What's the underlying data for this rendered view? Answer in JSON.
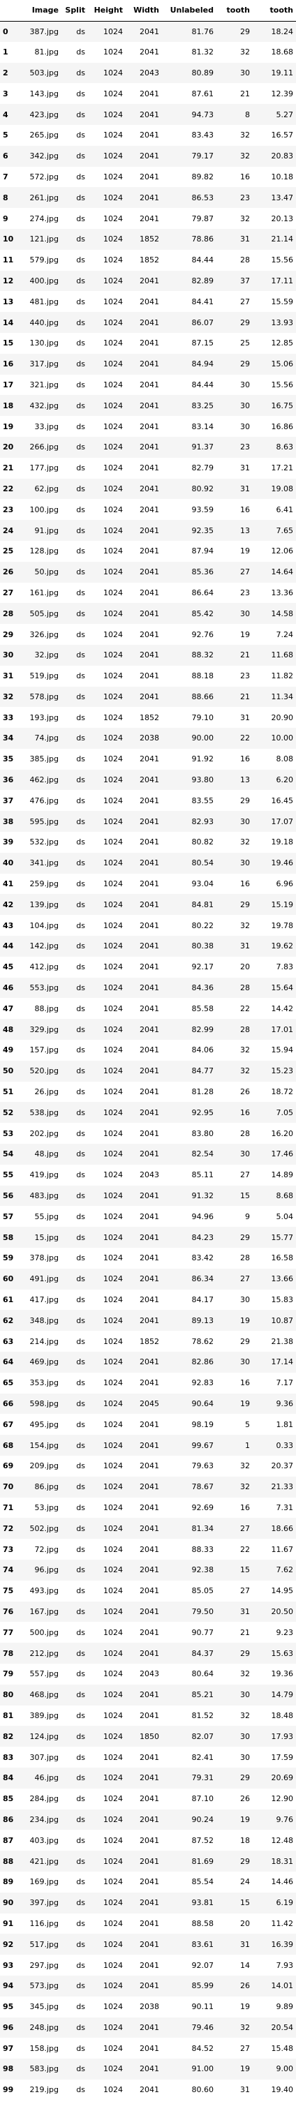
{
  "columns": [
    "",
    "Image",
    "Split",
    "Height",
    "Width",
    "Unlabeled",
    "tooth",
    "tooth"
  ],
  "rows": [
    [
      "0",
      "387.jpg",
      "ds",
      "1024",
      "2041",
      "81.76",
      "29",
      "18.24"
    ],
    [
      "1",
      "81.jpg",
      "ds",
      "1024",
      "2041",
      "81.32",
      "32",
      "18.68"
    ],
    [
      "2",
      "503.jpg",
      "ds",
      "1024",
      "2043",
      "80.89",
      "30",
      "19.11"
    ],
    [
      "3",
      "143.jpg",
      "ds",
      "1024",
      "2041",
      "87.61",
      "21",
      "12.39"
    ],
    [
      "4",
      "423.jpg",
      "ds",
      "1024",
      "2041",
      "94.73",
      "8",
      "5.27"
    ],
    [
      "5",
      "265.jpg",
      "ds",
      "1024",
      "2041",
      "83.43",
      "32",
      "16.57"
    ],
    [
      "6",
      "342.jpg",
      "ds",
      "1024",
      "2041",
      "79.17",
      "32",
      "20.83"
    ],
    [
      "7",
      "572.jpg",
      "ds",
      "1024",
      "2041",
      "89.82",
      "16",
      "10.18"
    ],
    [
      "8",
      "261.jpg",
      "ds",
      "1024",
      "2041",
      "86.53",
      "23",
      "13.47"
    ],
    [
      "9",
      "274.jpg",
      "ds",
      "1024",
      "2041",
      "79.87",
      "32",
      "20.13"
    ],
    [
      "10",
      "121.jpg",
      "ds",
      "1024",
      "1852",
      "78.86",
      "31",
      "21.14"
    ],
    [
      "11",
      "579.jpg",
      "ds",
      "1024",
      "1852",
      "84.44",
      "28",
      "15.56"
    ],
    [
      "12",
      "400.jpg",
      "ds",
      "1024",
      "2041",
      "82.89",
      "37",
      "17.11"
    ],
    [
      "13",
      "481.jpg",
      "ds",
      "1024",
      "2041",
      "84.41",
      "27",
      "15.59"
    ],
    [
      "14",
      "440.jpg",
      "ds",
      "1024",
      "2041",
      "86.07",
      "29",
      "13.93"
    ],
    [
      "15",
      "130.jpg",
      "ds",
      "1024",
      "2041",
      "87.15",
      "25",
      "12.85"
    ],
    [
      "16",
      "317.jpg",
      "ds",
      "1024",
      "2041",
      "84.94",
      "29",
      "15.06"
    ],
    [
      "17",
      "321.jpg",
      "ds",
      "1024",
      "2041",
      "84.44",
      "30",
      "15.56"
    ],
    [
      "18",
      "432.jpg",
      "ds",
      "1024",
      "2041",
      "83.25",
      "30",
      "16.75"
    ],
    [
      "19",
      "33.jpg",
      "ds",
      "1024",
      "2041",
      "83.14",
      "30",
      "16.86"
    ],
    [
      "20",
      "266.jpg",
      "ds",
      "1024",
      "2041",
      "91.37",
      "23",
      "8.63"
    ],
    [
      "21",
      "177.jpg",
      "ds",
      "1024",
      "2041",
      "82.79",
      "31",
      "17.21"
    ],
    [
      "22",
      "62.jpg",
      "ds",
      "1024",
      "2041",
      "80.92",
      "31",
      "19.08"
    ],
    [
      "23",
      "100.jpg",
      "ds",
      "1024",
      "2041",
      "93.59",
      "16",
      "6.41"
    ],
    [
      "24",
      "91.jpg",
      "ds",
      "1024",
      "2041",
      "92.35",
      "13",
      "7.65"
    ],
    [
      "25",
      "128.jpg",
      "ds",
      "1024",
      "2041",
      "87.94",
      "19",
      "12.06"
    ],
    [
      "26",
      "50.jpg",
      "ds",
      "1024",
      "2041",
      "85.36",
      "27",
      "14.64"
    ],
    [
      "27",
      "161.jpg",
      "ds",
      "1024",
      "2041",
      "86.64",
      "23",
      "13.36"
    ],
    [
      "28",
      "505.jpg",
      "ds",
      "1024",
      "2041",
      "85.42",
      "30",
      "14.58"
    ],
    [
      "29",
      "326.jpg",
      "ds",
      "1024",
      "2041",
      "92.76",
      "19",
      "7.24"
    ],
    [
      "30",
      "32.jpg",
      "ds",
      "1024",
      "2041",
      "88.32",
      "21",
      "11.68"
    ],
    [
      "31",
      "519.jpg",
      "ds",
      "1024",
      "2041",
      "88.18",
      "23",
      "11.82"
    ],
    [
      "32",
      "578.jpg",
      "ds",
      "1024",
      "2041",
      "88.66",
      "21",
      "11.34"
    ],
    [
      "33",
      "193.jpg",
      "ds",
      "1024",
      "1852",
      "79.10",
      "31",
      "20.90"
    ],
    [
      "34",
      "74.jpg",
      "ds",
      "1024",
      "2038",
      "90.00",
      "22",
      "10.00"
    ],
    [
      "35",
      "385.jpg",
      "ds",
      "1024",
      "2041",
      "91.92",
      "16",
      "8.08"
    ],
    [
      "36",
      "462.jpg",
      "ds",
      "1024",
      "2041",
      "93.80",
      "13",
      "6.20"
    ],
    [
      "37",
      "476.jpg",
      "ds",
      "1024",
      "2041",
      "83.55",
      "29",
      "16.45"
    ],
    [
      "38",
      "595.jpg",
      "ds",
      "1024",
      "2041",
      "82.93",
      "30",
      "17.07"
    ],
    [
      "39",
      "532.jpg",
      "ds",
      "1024",
      "2041",
      "80.82",
      "32",
      "19.18"
    ],
    [
      "40",
      "341.jpg",
      "ds",
      "1024",
      "2041",
      "80.54",
      "30",
      "19.46"
    ],
    [
      "41",
      "259.jpg",
      "ds",
      "1024",
      "2041",
      "93.04",
      "16",
      "6.96"
    ],
    [
      "42",
      "139.jpg",
      "ds",
      "1024",
      "2041",
      "84.81",
      "29",
      "15.19"
    ],
    [
      "43",
      "104.jpg",
      "ds",
      "1024",
      "2041",
      "80.22",
      "32",
      "19.78"
    ],
    [
      "44",
      "142.jpg",
      "ds",
      "1024",
      "2041",
      "80.38",
      "31",
      "19.62"
    ],
    [
      "45",
      "412.jpg",
      "ds",
      "1024",
      "2041",
      "92.17",
      "20",
      "7.83"
    ],
    [
      "46",
      "553.jpg",
      "ds",
      "1024",
      "2041",
      "84.36",
      "28",
      "15.64"
    ],
    [
      "47",
      "88.jpg",
      "ds",
      "1024",
      "2041",
      "85.58",
      "22",
      "14.42"
    ],
    [
      "48",
      "329.jpg",
      "ds",
      "1024",
      "2041",
      "82.99",
      "28",
      "17.01"
    ],
    [
      "49",
      "157.jpg",
      "ds",
      "1024",
      "2041",
      "84.06",
      "32",
      "15.94"
    ],
    [
      "50",
      "520.jpg",
      "ds",
      "1024",
      "2041",
      "84.77",
      "32",
      "15.23"
    ],
    [
      "51",
      "26.jpg",
      "ds",
      "1024",
      "2041",
      "81.28",
      "26",
      "18.72"
    ],
    [
      "52",
      "538.jpg",
      "ds",
      "1024",
      "2041",
      "92.95",
      "16",
      "7.05"
    ],
    [
      "53",
      "202.jpg",
      "ds",
      "1024",
      "2041",
      "83.80",
      "28",
      "16.20"
    ],
    [
      "54",
      "48.jpg",
      "ds",
      "1024",
      "2041",
      "82.54",
      "30",
      "17.46"
    ],
    [
      "55",
      "419.jpg",
      "ds",
      "1024",
      "2043",
      "85.11",
      "27",
      "14.89"
    ],
    [
      "56",
      "483.jpg",
      "ds",
      "1024",
      "2041",
      "91.32",
      "15",
      "8.68"
    ],
    [
      "57",
      "55.jpg",
      "ds",
      "1024",
      "2041",
      "94.96",
      "9",
      "5.04"
    ],
    [
      "58",
      "15.jpg",
      "ds",
      "1024",
      "2041",
      "84.23",
      "29",
      "15.77"
    ],
    [
      "59",
      "378.jpg",
      "ds",
      "1024",
      "2041",
      "83.42",
      "28",
      "16.58"
    ],
    [
      "60",
      "491.jpg",
      "ds",
      "1024",
      "2041",
      "86.34",
      "27",
      "13.66"
    ],
    [
      "61",
      "417.jpg",
      "ds",
      "1024",
      "2041",
      "84.17",
      "30",
      "15.83"
    ],
    [
      "62",
      "348.jpg",
      "ds",
      "1024",
      "2041",
      "89.13",
      "19",
      "10.87"
    ],
    [
      "63",
      "214.jpg",
      "ds",
      "1024",
      "1852",
      "78.62",
      "29",
      "21.38"
    ],
    [
      "64",
      "469.jpg",
      "ds",
      "1024",
      "2041",
      "82.86",
      "30",
      "17.14"
    ],
    [
      "65",
      "353.jpg",
      "ds",
      "1024",
      "2041",
      "92.83",
      "16",
      "7.17"
    ],
    [
      "66",
      "598.jpg",
      "ds",
      "1024",
      "2045",
      "90.64",
      "19",
      "9.36"
    ],
    [
      "67",
      "495.jpg",
      "ds",
      "1024",
      "2041",
      "98.19",
      "5",
      "1.81"
    ],
    [
      "68",
      "154.jpg",
      "ds",
      "1024",
      "2041",
      "99.67",
      "1",
      "0.33"
    ],
    [
      "69",
      "209.jpg",
      "ds",
      "1024",
      "2041",
      "79.63",
      "32",
      "20.37"
    ],
    [
      "70",
      "86.jpg",
      "ds",
      "1024",
      "2041",
      "78.67",
      "32",
      "21.33"
    ],
    [
      "71",
      "53.jpg",
      "ds",
      "1024",
      "2041",
      "92.69",
      "16",
      "7.31"
    ],
    [
      "72",
      "502.jpg",
      "ds",
      "1024",
      "2041",
      "81.34",
      "27",
      "18.66"
    ],
    [
      "73",
      "72.jpg",
      "ds",
      "1024",
      "2041",
      "88.33",
      "22",
      "11.67"
    ],
    [
      "74",
      "96.jpg",
      "ds",
      "1024",
      "2041",
      "92.38",
      "15",
      "7.62"
    ],
    [
      "75",
      "493.jpg",
      "ds",
      "1024",
      "2041",
      "85.05",
      "27",
      "14.95"
    ],
    [
      "76",
      "167.jpg",
      "ds",
      "1024",
      "2041",
      "79.50",
      "31",
      "20.50"
    ],
    [
      "77",
      "500.jpg",
      "ds",
      "1024",
      "2041",
      "90.77",
      "21",
      "9.23"
    ],
    [
      "78",
      "212.jpg",
      "ds",
      "1024",
      "2041",
      "84.37",
      "29",
      "15.63"
    ],
    [
      "79",
      "557.jpg",
      "ds",
      "1024",
      "2043",
      "80.64",
      "32",
      "19.36"
    ],
    [
      "80",
      "468.jpg",
      "ds",
      "1024",
      "2041",
      "85.21",
      "30",
      "14.79"
    ],
    [
      "81",
      "389.jpg",
      "ds",
      "1024",
      "2041",
      "81.52",
      "32",
      "18.48"
    ],
    [
      "82",
      "124.jpg",
      "ds",
      "1024",
      "1850",
      "82.07",
      "30",
      "17.93"
    ],
    [
      "83",
      "307.jpg",
      "ds",
      "1024",
      "2041",
      "82.41",
      "30",
      "17.59"
    ],
    [
      "84",
      "46.jpg",
      "ds",
      "1024",
      "2041",
      "79.31",
      "29",
      "20.69"
    ],
    [
      "85",
      "284.jpg",
      "ds",
      "1024",
      "2041",
      "87.10",
      "26",
      "12.90"
    ],
    [
      "86",
      "234.jpg",
      "ds",
      "1024",
      "2041",
      "90.24",
      "19",
      "9.76"
    ],
    [
      "87",
      "403.jpg",
      "ds",
      "1024",
      "2041",
      "87.52",
      "18",
      "12.48"
    ],
    [
      "88",
      "421.jpg",
      "ds",
      "1024",
      "2041",
      "81.69",
      "29",
      "18.31"
    ],
    [
      "89",
      "169.jpg",
      "ds",
      "1024",
      "2041",
      "85.54",
      "24",
      "14.46"
    ],
    [
      "90",
      "397.jpg",
      "ds",
      "1024",
      "2041",
      "93.81",
      "15",
      "6.19"
    ],
    [
      "91",
      "116.jpg",
      "ds",
      "1024",
      "2041",
      "88.58",
      "20",
      "11.42"
    ],
    [
      "92",
      "517.jpg",
      "ds",
      "1024",
      "2041",
      "83.61",
      "31",
      "16.39"
    ],
    [
      "93",
      "297.jpg",
      "ds",
      "1024",
      "2041",
      "92.07",
      "14",
      "7.93"
    ],
    [
      "94",
      "573.jpg",
      "ds",
      "1024",
      "2041",
      "85.99",
      "26",
      "14.01"
    ],
    [
      "95",
      "345.jpg",
      "ds",
      "1024",
      "2038",
      "90.11",
      "19",
      "9.89"
    ],
    [
      "96",
      "248.jpg",
      "ds",
      "1024",
      "2041",
      "79.46",
      "32",
      "20.54"
    ],
    [
      "97",
      "158.jpg",
      "ds",
      "1024",
      "2041",
      "84.52",
      "27",
      "15.48"
    ],
    [
      "98",
      "583.jpg",
      "ds",
      "1024",
      "2041",
      "91.00",
      "19",
      "9.00"
    ],
    [
      "99",
      "219.jpg",
      "ds",
      "1024",
      "2041",
      "80.60",
      "31",
      "19.40"
    ]
  ]
}
